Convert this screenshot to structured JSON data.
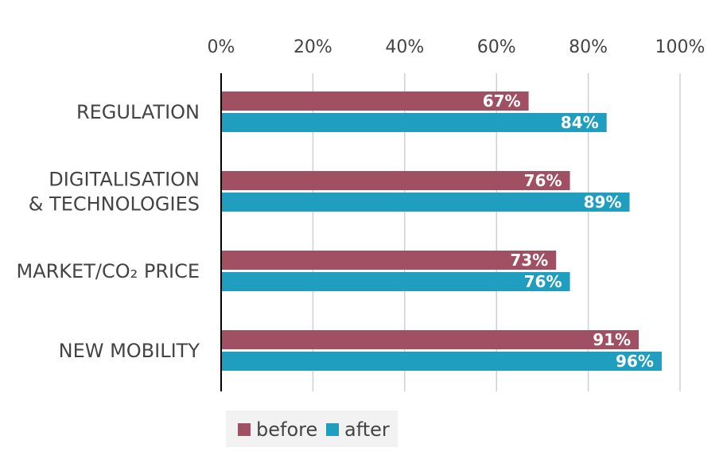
{
  "chart_data": {
    "type": "bar",
    "orientation": "horizontal",
    "categories": [
      [
        "REGULATION"
      ],
      [
        "DIGITALISATION",
        "& TECHNOLOGIES"
      ],
      [
        "MARKET/CO₂ PRICE"
      ],
      [
        "NEW MOBILITY"
      ]
    ],
    "series": [
      {
        "name": "before",
        "values": [
          67,
          76,
          73,
          91
        ],
        "labels": [
          "67%",
          "76%",
          "73%",
          "91%"
        ],
        "color": "#a05062"
      },
      {
        "name": "after",
        "values": [
          84,
          89,
          76,
          96
        ],
        "labels": [
          "84%",
          "89%",
          "76%",
          "96%"
        ],
        "color": "#1f9ec0"
      }
    ],
    "xlim": [
      0,
      100
    ],
    "ticks": [
      0,
      20,
      40,
      60,
      80,
      100
    ],
    "tick_labels": [
      "0%",
      "20%",
      "40%",
      "60%",
      "80%",
      "100%"
    ],
    "xaxis_position": "top",
    "grid": true,
    "legend_position": "bottom-left"
  }
}
